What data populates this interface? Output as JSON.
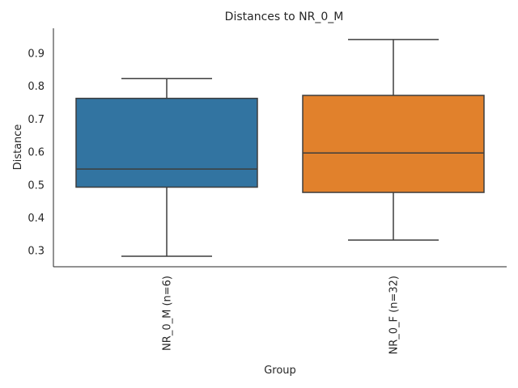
{
  "chart_data": {
    "type": "box",
    "title": "Distances to NR_0_M",
    "xlabel": "Group",
    "ylabel": "Distance",
    "ylim": [
      0.25,
      0.975
    ],
    "yticks": [
      0.3,
      0.4,
      0.5,
      0.6,
      0.7,
      0.8,
      0.9
    ],
    "ytick_labels": [
      "0.3",
      "0.4",
      "0.5",
      "0.6",
      "0.7",
      "0.8",
      "0.9"
    ],
    "grid": false,
    "categories": [
      "NR_0_M (n=6)",
      "NR_0_F (n=32)"
    ],
    "boxes": [
      {
        "category": "NR_0_M (n=6)",
        "min": 0.282,
        "q1": 0.492,
        "median": 0.547,
        "q3": 0.762,
        "max": 0.822,
        "color": "#3274a1"
      },
      {
        "category": "NR_0_F (n=32)",
        "min": 0.331,
        "q1": 0.476,
        "median": 0.596,
        "q3": 0.771,
        "max": 0.941,
        "color": "#e1812c"
      }
    ],
    "line_color": "#3d3d3d"
  }
}
